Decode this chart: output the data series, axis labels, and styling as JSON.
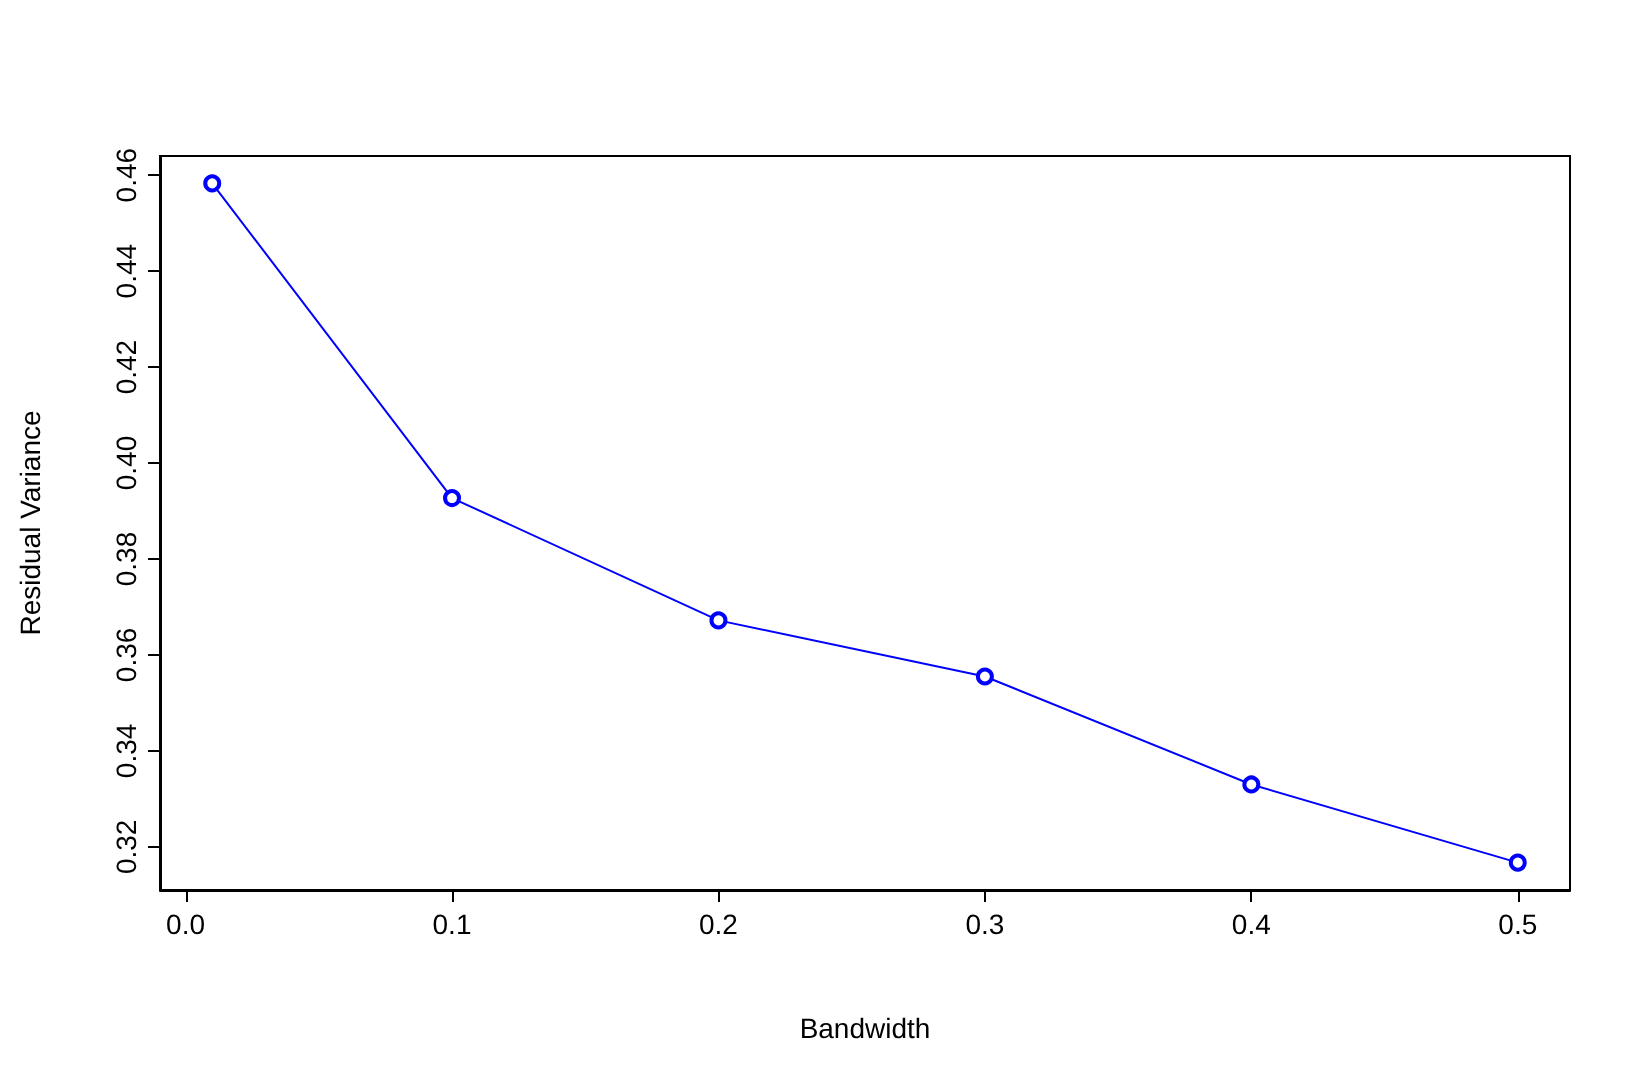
{
  "chart_data": {
    "type": "line",
    "xlabel": "Bandwidth",
    "ylabel": "Residual Variance",
    "x": [
      0.01,
      0.1,
      0.2,
      0.3,
      0.4,
      0.5
    ],
    "series": [
      {
        "color": "#0000ff",
        "values": [
          0.4583,
          0.3927,
          0.3672,
          0.3555,
          0.333,
          0.3167
        ]
      }
    ],
    "xlim": [
      -0.0096,
      0.5196
    ],
    "ylim": [
      0.311,
      0.464
    ],
    "xticks": [
      {
        "value": 0,
        "label": "0.0"
      },
      0.1,
      0.2,
      0.3,
      0.4,
      0.5
    ],
    "yticks": [
      0.32,
      0.34,
      0.36,
      0.38,
      {
        "value": 0.4,
        "label": "0.40"
      },
      0.42,
      0.44,
      0.46
    ],
    "marker": "circle",
    "line_style": "solid",
    "grid": false
  }
}
